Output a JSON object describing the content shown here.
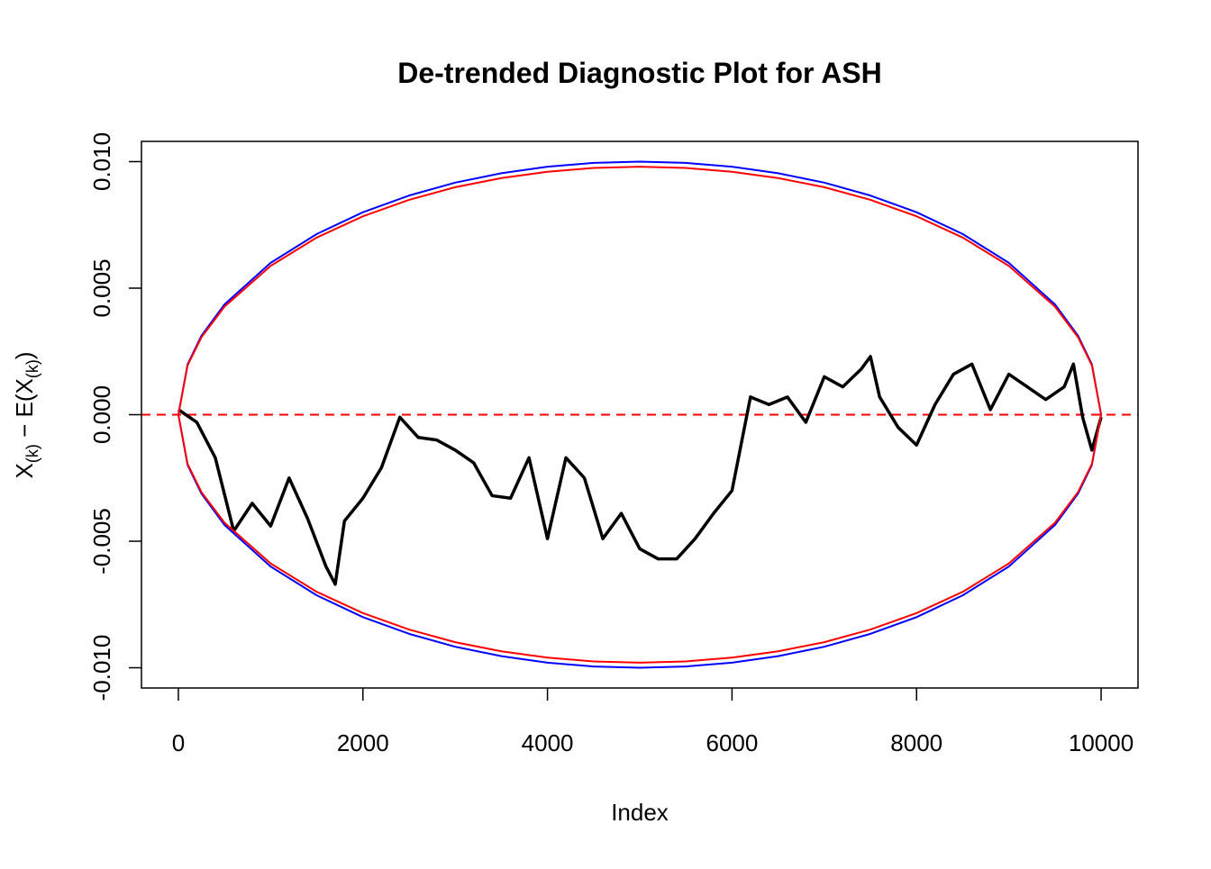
{
  "chart_data": {
    "type": "line",
    "title": "De-trended Diagnostic Plot for ASH",
    "xlabel": "Index",
    "ylabel": {
      "parts": [
        "X",
        "(k)",
        " − E(X",
        "(k)",
        ")"
      ]
    },
    "xlim": [
      -400,
      10400
    ],
    "ylim": [
      -0.0108,
      0.0108
    ],
    "xticks": [
      0,
      2000,
      4000,
      6000,
      8000,
      10000
    ],
    "yticks": [
      {
        "value": -0.01,
        "label": "-0.010"
      },
      {
        "value": -0.005,
        "label": "-0.005"
      },
      {
        "value": 0,
        "label": "0.000"
      },
      {
        "value": 0.005,
        "label": "0.005"
      },
      {
        "value": 0.01,
        "label": "0.010"
      }
    ],
    "hline": {
      "value": 0,
      "color": "#ff0000",
      "dashed": true
    },
    "series": [
      {
        "color": "#000000",
        "x": [
          0,
          200,
          400,
          600,
          800,
          1000,
          1200,
          1400,
          1600,
          1700,
          1800,
          2000,
          2200,
          2400,
          2600,
          2800,
          3000,
          3200,
          3400,
          3600,
          3800,
          4000,
          4200,
          4400,
          4600,
          4800,
          5000,
          5200,
          5400,
          5600,
          5800,
          6000,
          6200,
          6400,
          6600,
          6800,
          7000,
          7200,
          7400,
          7500,
          7600,
          7800,
          8000,
          8200,
          8400,
          8600,
          8800,
          9000,
          9200,
          9400,
          9600,
          9700,
          9800,
          9900,
          10000
        ],
        "values": [
          0.0002,
          -0.0003,
          -0.0017,
          -0.0046,
          -0.0035,
          -0.0044,
          -0.0025,
          -0.0041,
          -0.006,
          -0.0067,
          -0.0042,
          -0.0033,
          -0.0021,
          -0.0001,
          -0.0009,
          -0.001,
          -0.0014,
          -0.0019,
          -0.0032,
          -0.0033,
          -0.0017,
          -0.0049,
          -0.0017,
          -0.0025,
          -0.0049,
          -0.0039,
          -0.0053,
          -0.0057,
          -0.0057,
          -0.0049,
          -0.0039,
          -0.003,
          0.0007,
          0.0004,
          0.0007,
          -0.0003,
          0.0015,
          0.0011,
          0.0018,
          0.0023,
          0.0007,
          -0.0005,
          -0.0012,
          0.0004,
          0.0016,
          0.002,
          0.0002,
          0.0016,
          0.0011,
          0.0006,
          0.0011,
          0.002,
          -0.0001,
          -0.0014,
          -0.0001
        ]
      },
      {
        "color": "#0000ff",
        "x": [
          0,
          100,
          250,
          500,
          1000,
          1500,
          2000,
          2500,
          3000,
          3500,
          4000,
          4500,
          5000,
          5500,
          6000,
          6500,
          7000,
          7500,
          8000,
          8500,
          9000,
          9500,
          9750,
          9900,
          10000
        ],
        "values": [
          0,
          0.00199,
          0.00312,
          0.00436,
          0.006,
          0.00714,
          0.008,
          0.00866,
          0.00917,
          0.00954,
          0.0098,
          0.00995,
          0.01,
          0.00995,
          0.0098,
          0.00954,
          0.00917,
          0.00866,
          0.008,
          0.00714,
          0.006,
          0.00436,
          0.00312,
          0.00199,
          0
        ]
      },
      {
        "color": "#0000ff",
        "x": [
          0,
          100,
          250,
          500,
          1000,
          1500,
          2000,
          2500,
          3000,
          3500,
          4000,
          4500,
          5000,
          5500,
          6000,
          6500,
          7000,
          7500,
          8000,
          8500,
          9000,
          9500,
          9750,
          9900,
          10000
        ],
        "values": [
          0,
          -0.00199,
          -0.00312,
          -0.00436,
          -0.006,
          -0.00714,
          -0.008,
          -0.00866,
          -0.00917,
          -0.00954,
          -0.0098,
          -0.00995,
          -0.01,
          -0.00995,
          -0.0098,
          -0.00954,
          -0.00917,
          -0.00866,
          -0.008,
          -0.00714,
          -0.006,
          -0.00436,
          -0.00312,
          -0.00199,
          0
        ]
      },
      {
        "color": "#ff0000",
        "x": [
          0,
          100,
          250,
          500,
          1000,
          1500,
          2000,
          2500,
          3000,
          3500,
          4000,
          4500,
          5000,
          5500,
          6000,
          6500,
          7000,
          7500,
          8000,
          8500,
          9000,
          9500,
          9750,
          9900,
          10000
        ],
        "values": [
          0,
          0.00195,
          0.00306,
          0.00427,
          0.00588,
          0.007,
          0.00784,
          0.00849,
          0.00899,
          0.00935,
          0.0096,
          0.00975,
          0.0098,
          0.00975,
          0.0096,
          0.00935,
          0.00899,
          0.00849,
          0.00784,
          0.007,
          0.00588,
          0.00427,
          0.00306,
          0.00195,
          0
        ]
      },
      {
        "color": "#ff0000",
        "x": [
          0,
          100,
          250,
          500,
          1000,
          1500,
          2000,
          2500,
          3000,
          3500,
          4000,
          4500,
          5000,
          5500,
          6000,
          6500,
          7000,
          7500,
          8000,
          8500,
          9000,
          9500,
          9750,
          9900,
          10000
        ],
        "values": [
          0,
          -0.00195,
          -0.00306,
          -0.00427,
          -0.00588,
          -0.007,
          -0.00784,
          -0.00849,
          -0.00899,
          -0.00935,
          -0.0096,
          -0.00975,
          -0.0098,
          -0.00975,
          -0.0096,
          -0.00935,
          -0.00899,
          -0.00849,
          -0.00784,
          -0.007,
          -0.00588,
          -0.00427,
          -0.00306,
          -0.00195,
          0
        ]
      }
    ]
  }
}
